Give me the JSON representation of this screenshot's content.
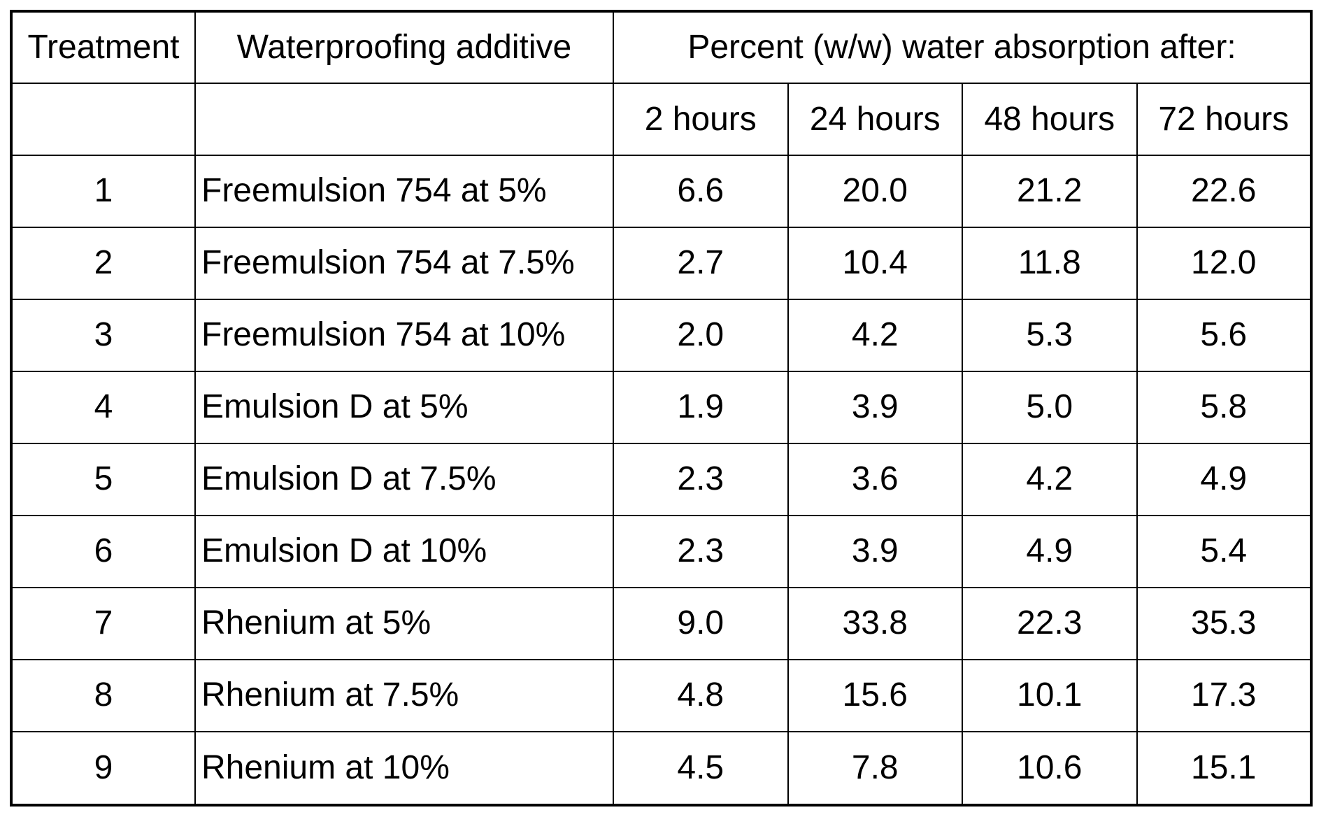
{
  "table": {
    "header_row1": {
      "treatment": "Treatment",
      "additive": "Waterproofing additive",
      "absorption": "Percent (w/w) water absorption after:"
    },
    "header_row2": {
      "treatment": "",
      "additive": "",
      "hours": [
        "2 hours",
        "24 hours",
        "48 hours",
        "72 hours"
      ]
    },
    "rows": [
      {
        "treatment": "1",
        "additive": "Freemulsion 754 at 5%",
        "h2": "6.6",
        "h24": "20.0",
        "h48": "21.2",
        "h72": "22.6"
      },
      {
        "treatment": "2",
        "additive": "Freemulsion 754 at 7.5%",
        "h2": "2.7",
        "h24": "10.4",
        "h48": "11.8",
        "h72": "12.0"
      },
      {
        "treatment": "3",
        "additive": "Freemulsion 754 at 10%",
        "h2": "2.0",
        "h24": "4.2",
        "h48": "5.3",
        "h72": "5.6"
      },
      {
        "treatment": "4",
        "additive": "Emulsion D at 5%",
        "h2": "1.9",
        "h24": "3.9",
        "h48": "5.0",
        "h72": "5.8"
      },
      {
        "treatment": "5",
        "additive": "Emulsion D at 7.5%",
        "h2": "2.3",
        "h24": "3.6",
        "h48": "4.2",
        "h72": "4.9"
      },
      {
        "treatment": "6",
        "additive": "Emulsion D at 10%",
        "h2": "2.3",
        "h24": "3.9",
        "h48": "4.9",
        "h72": "5.4"
      },
      {
        "treatment": "7",
        "additive": "Rhenium at 5%",
        "h2": "9.0",
        "h24": "33.8",
        "h48": "22.3",
        "h72": "35.3"
      },
      {
        "treatment": "8",
        "additive": "Rhenium at 7.5%",
        "h2": "4.8",
        "h24": "15.6",
        "h48": "10.1",
        "h72": "17.3"
      },
      {
        "treatment": "9",
        "additive": "Rhenium at 10%",
        "h2": "4.5",
        "h24": "7.8",
        "h48": "10.6",
        "h72": "15.1"
      }
    ]
  }
}
